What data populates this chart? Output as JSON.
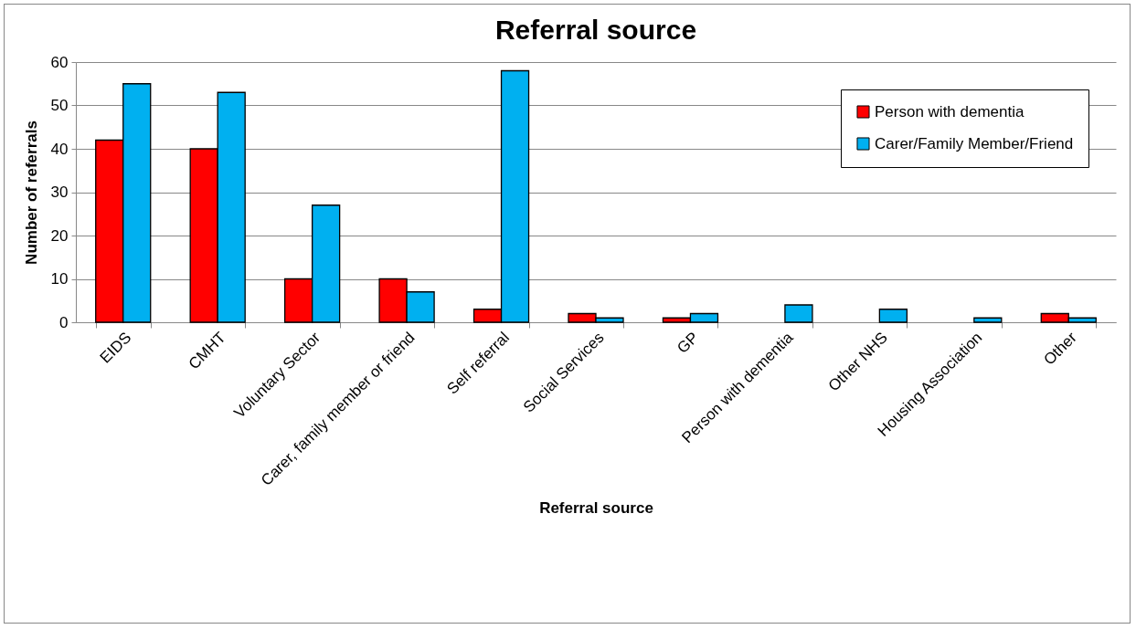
{
  "chart_data": {
    "type": "bar",
    "title": "Referral source",
    "xlabel": "Referral source",
    "ylabel": "Number of referrals",
    "categories": [
      "EIDS",
      "CMHT",
      "Voluntary Sector",
      "Carer, family member or friend",
      "Self referral",
      "Social Services",
      "GP",
      "Person with dementia",
      "Other NHS",
      "Housing Association",
      "Other"
    ],
    "series": [
      {
        "name": "Person with dementia",
        "color": "#ff0000",
        "values": [
          42,
          40,
          10,
          10,
          3,
          2,
          1,
          null,
          null,
          null,
          2
        ]
      },
      {
        "name": "Carer/Family Member/Friend",
        "color": "#00b0f0",
        "values": [
          55,
          53,
          27,
          7,
          58,
          1,
          2,
          4,
          3,
          1,
          1
        ]
      }
    ],
    "ylim": [
      0,
      60
    ],
    "yticks": [
      0,
      10,
      20,
      30,
      40,
      50,
      60
    ],
    "grid": "y",
    "legend": "top right"
  }
}
